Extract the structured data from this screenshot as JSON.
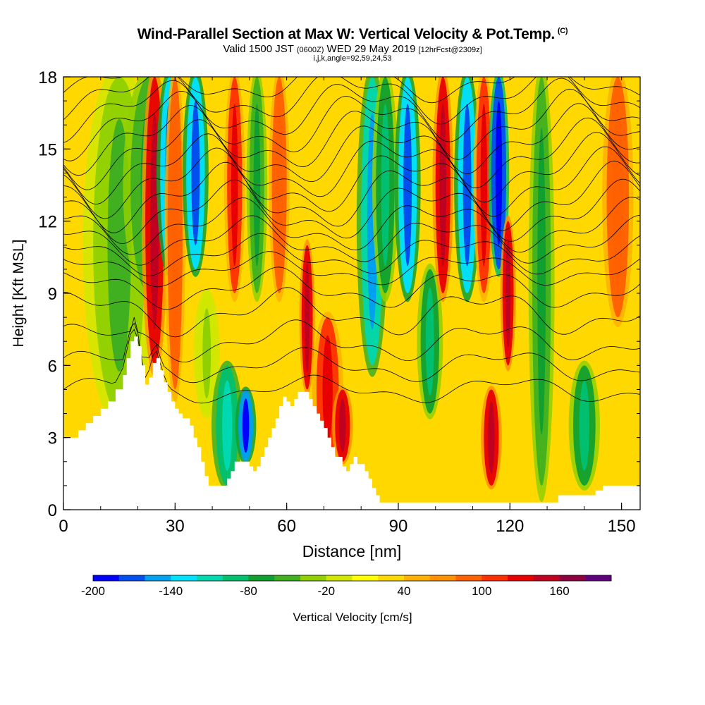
{
  "chart_data": {
    "type": "heatmap",
    "title": "Wind-Parallel Section at Max W: Vertical Velocity & Pot.Temp.",
    "title_mark": "(C)",
    "subtitle_valid": "Valid 1500 JST",
    "subtitle_zulu": "(0600Z)",
    "subtitle_date": "WED 29 May 2019",
    "subtitle_fcst": "[12hrFcst@2309z]",
    "subtitle_indices": "i,j,k,angle=92,59,24,53",
    "xlabel": "Distance [nm]",
    "ylabel": "Height [Kft MSL]",
    "xlim": [
      0,
      155
    ],
    "ylim": [
      0,
      18
    ],
    "x_ticks": [
      "0",
      "30",
      "60",
      "90",
      "120",
      "150"
    ],
    "x_tick_values": [
      0,
      30,
      60,
      90,
      120,
      150
    ],
    "y_ticks": [
      "0",
      "3",
      "6",
      "9",
      "12",
      "15",
      "18"
    ],
    "y_tick_values": [
      0,
      3,
      6,
      9,
      12,
      15,
      18
    ],
    "colorbar": {
      "label": "Vertical Velocity [cm/s]",
      "range": [
        -200,
        200
      ],
      "step": 20,
      "tick_labels": [
        "-200",
        "-140",
        "-80",
        "-20",
        "40",
        "100",
        "160"
      ],
      "tick_values": [
        -200,
        -140,
        -80,
        -20,
        40,
        100,
        160
      ],
      "colors": [
        "#0000ff",
        "#0050f0",
        "#00a0f0",
        "#00e0ff",
        "#00d8b0",
        "#00c070",
        "#10a030",
        "#40b020",
        "#90d000",
        "#d0e800",
        "#ffff00",
        "#ffd800",
        "#ffb000",
        "#ff9000",
        "#ff6000",
        "#ff3000",
        "#e80000",
        "#c00020",
        "#900040",
        "#600080"
      ]
    },
    "terrain_height_kft": [
      [
        0,
        3.0
      ],
      [
        4,
        3.3
      ],
      [
        6,
        3.6
      ],
      [
        8,
        3.9
      ],
      [
        10,
        4.2
      ],
      [
        12,
        4.5
      ],
      [
        14,
        5.0
      ],
      [
        16,
        5.6
      ],
      [
        17,
        6.3
      ],
      [
        18,
        7.0
      ],
      [
        19,
        7.2
      ],
      [
        20,
        6.8
      ],
      [
        21,
        6.0
      ],
      [
        22,
        5.2
      ],
      [
        23,
        5.5
      ],
      [
        24,
        6.1
      ],
      [
        25,
        6.3
      ],
      [
        26,
        5.8
      ],
      [
        27,
        5.3
      ],
      [
        28,
        4.9
      ],
      [
        29,
        4.5
      ],
      [
        30,
        4.2
      ],
      [
        31,
        4.0
      ],
      [
        32,
        3.8
      ],
      [
        34,
        3.5
      ],
      [
        35,
        3.0
      ],
      [
        36,
        2.6
      ],
      [
        37,
        2.0
      ],
      [
        38,
        1.4
      ],
      [
        39,
        1.0
      ],
      [
        42,
        1.0
      ],
      [
        44,
        1.3
      ],
      [
        45,
        1.6
      ],
      [
        46,
        2.0
      ],
      [
        49,
        2.0
      ],
      [
        50,
        1.8
      ],
      [
        51,
        1.6
      ],
      [
        52,
        1.8
      ],
      [
        53,
        2.2
      ],
      [
        54,
        2.6
      ],
      [
        55,
        3.0
      ],
      [
        56,
        3.4
      ],
      [
        57,
        3.8
      ],
      [
        58,
        4.3
      ],
      [
        59,
        4.7
      ],
      [
        60,
        4.5
      ],
      [
        61,
        4.3
      ],
      [
        62,
        4.6
      ],
      [
        63,
        4.9
      ],
      [
        65,
        4.9
      ],
      [
        66,
        4.6
      ],
      [
        67,
        4.3
      ],
      [
        68,
        4.0
      ],
      [
        69,
        3.7
      ],
      [
        70,
        3.4
      ],
      [
        71,
        3.0
      ],
      [
        72,
        2.6
      ],
      [
        73,
        2.2
      ],
      [
        75,
        1.8
      ],
      [
        76,
        1.6
      ],
      [
        77,
        1.9
      ],
      [
        78,
        2.2
      ],
      [
        79,
        1.9
      ],
      [
        81,
        1.6
      ],
      [
        82,
        1.3
      ],
      [
        83,
        0.9
      ],
      [
        84,
        0.6
      ],
      [
        85,
        0.3
      ],
      [
        132,
        0.3
      ],
      [
        133,
        0.6
      ],
      [
        140,
        0.6
      ],
      [
        143,
        0.8
      ],
      [
        145,
        1.0
      ],
      [
        155,
        1.0
      ]
    ],
    "velocity_bands": [
      {
        "x": 8,
        "w": 14,
        "h0": 4,
        "h1": 18,
        "value": -40
      },
      {
        "x": 18,
        "w": 10,
        "h0": 9,
        "h1": 18,
        "value": -60
      },
      {
        "x": 22,
        "w": 5,
        "h0": 6,
        "h1": 18,
        "value": 120
      },
      {
        "x": 26,
        "w": 5,
        "h0": 10,
        "h1": 18,
        "value": -140
      },
      {
        "x": 28,
        "w": 4,
        "h0": 5,
        "h1": 18,
        "value": 80
      },
      {
        "x": 33,
        "w": 5,
        "h0": 10,
        "h1": 18,
        "value": -140
      },
      {
        "x": 36,
        "w": 5,
        "h0": 4,
        "h1": 9,
        "value": -20
      },
      {
        "x": 41,
        "w": 6,
        "h0": 1,
        "h1": 6,
        "value": -100
      },
      {
        "x": 47,
        "w": 4,
        "h0": 2,
        "h1": 5,
        "value": -160
      },
      {
        "x": 44,
        "w": 4,
        "h0": 9,
        "h1": 18,
        "value": 100
      },
      {
        "x": 50,
        "w": 4,
        "h0": 9,
        "h1": 18,
        "value": -60
      },
      {
        "x": 56,
        "w": 4,
        "h0": 9,
        "h1": 18,
        "value": 80
      },
      {
        "x": 64,
        "w": 3,
        "h0": 5,
        "h1": 11,
        "value": 120
      },
      {
        "x": 68,
        "w": 6,
        "h0": 2,
        "h1": 8,
        "value": 100
      },
      {
        "x": 73,
        "w": 4,
        "h0": 2,
        "h1": 5,
        "value": 120
      },
      {
        "x": 80,
        "w": 6,
        "h0": 6,
        "h1": 18,
        "value": -120
      },
      {
        "x": 84,
        "w": 5,
        "h0": 9,
        "h1": 18,
        "value": -80
      },
      {
        "x": 90,
        "w": 5,
        "h0": 9,
        "h1": 18,
        "value": -140
      },
      {
        "x": 96,
        "w": 5,
        "h0": 4,
        "h1": 10,
        "value": -80
      },
      {
        "x": 100,
        "w": 4,
        "h0": 9,
        "h1": 18,
        "value": 120
      },
      {
        "x": 106,
        "w": 5,
        "h0": 9,
        "h1": 18,
        "value": -140
      },
      {
        "x": 111,
        "w": 4,
        "h0": 9,
        "h1": 18,
        "value": 100
      },
      {
        "x": 115,
        "w": 4,
        "h0": 10,
        "h1": 18,
        "value": -180
      },
      {
        "x": 113,
        "w": 4,
        "h0": 1,
        "h1": 5,
        "value": 120
      },
      {
        "x": 118,
        "w": 3,
        "h0": 6,
        "h1": 12,
        "value": 120
      },
      {
        "x": 126,
        "w": 5,
        "h0": 1,
        "h1": 18,
        "value": -60
      },
      {
        "x": 137,
        "w": 6,
        "h0": 1,
        "h1": 6,
        "value": -80
      },
      {
        "x": 146,
        "w": 6,
        "h0": 8,
        "h1": 18,
        "value": 80
      }
    ],
    "theta_contours": [
      {
        "base_kft": 5.0,
        "amp_kft": 0.4
      },
      {
        "base_kft": 6.0,
        "amp_kft": 0.5
      },
      {
        "base_kft": 7.0,
        "amp_kft": 0.6
      },
      {
        "base_kft": 8.2,
        "amp_kft": 0.7
      },
      {
        "base_kft": 9.2,
        "amp_kft": 0.6
      },
      {
        "base_kft": 10.0,
        "amp_kft": 0.5
      },
      {
        "base_kft": 10.6,
        "amp_kft": 0.6
      },
      {
        "base_kft": 11.2,
        "amp_kft": 0.7
      },
      {
        "base_kft": 11.8,
        "amp_kft": 0.8
      },
      {
        "base_kft": 12.4,
        "amp_kft": 0.9
      },
      {
        "base_kft": 13.0,
        "amp_kft": 1.0
      },
      {
        "base_kft": 13.6,
        "amp_kft": 1.0
      },
      {
        "base_kft": 14.2,
        "amp_kft": 1.0
      },
      {
        "base_kft": 14.8,
        "amp_kft": 1.0
      },
      {
        "base_kft": 15.4,
        "amp_kft": 1.0
      },
      {
        "base_kft": 16.0,
        "amp_kft": 1.0
      },
      {
        "base_kft": 16.6,
        "amp_kft": 0.9
      },
      {
        "base_kft": 17.2,
        "amp_kft": 0.8
      },
      {
        "base_kft": 17.8,
        "amp_kft": 0.6
      }
    ]
  }
}
